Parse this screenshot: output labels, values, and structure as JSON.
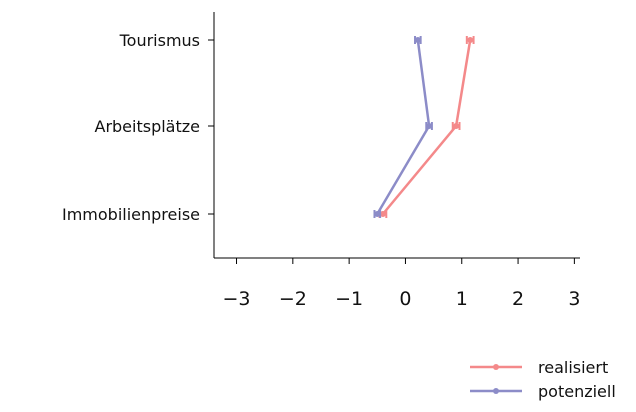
{
  "chart_data": {
    "type": "line",
    "orientation": "horizontal",
    "title": "",
    "xlabel": "",
    "ylabel": "",
    "categories": [
      "Tourismus",
      "Arbeitsplätze",
      "Immobilienpreise"
    ],
    "xlim": [
      -3.4,
      3.1
    ],
    "x_ticks": [
      {
        "value": -3,
        "label": "−3"
      },
      {
        "value": -2,
        "label": "−2"
      },
      {
        "value": -1,
        "label": "−1"
      },
      {
        "value": 0,
        "label": "0"
      },
      {
        "value": 1,
        "label": "1"
      },
      {
        "value": 2,
        "label": "2"
      },
      {
        "value": 3,
        "label": "3"
      }
    ],
    "grid": false,
    "legend_position": "bottom-right",
    "series": [
      {
        "name": "realisiert",
        "color": "#f4898a",
        "values": [
          1.15,
          0.9,
          -0.4
        ],
        "error": [
          0.06,
          0.06,
          0.06
        ]
      },
      {
        "name": "potenziell",
        "color": "#8c8cc8",
        "values": [
          0.22,
          0.42,
          -0.5
        ],
        "error": [
          0.05,
          0.05,
          0.05
        ]
      }
    ]
  }
}
